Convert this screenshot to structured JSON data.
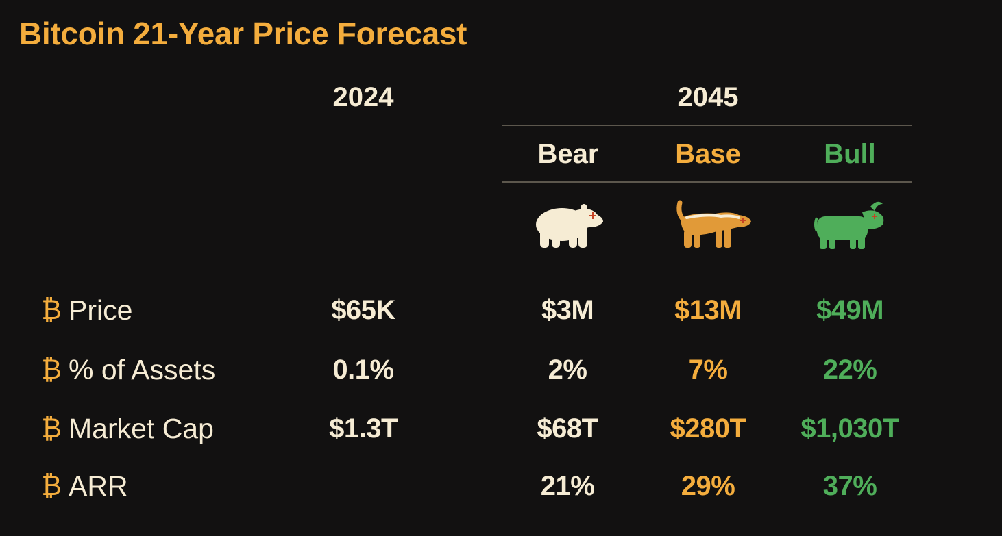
{
  "title": "Bitcoin 21-Year Price Forecast",
  "years": {
    "current": "2024",
    "future": "2045"
  },
  "scenarios": [
    {
      "label": "Bear",
      "color": "#f6ecd4",
      "icon": "bear-icon"
    },
    {
      "label": "Base",
      "color": "#f4ad3d",
      "icon": "honey-badger-icon"
    },
    {
      "label": "Bull",
      "color": "#4fae5a",
      "icon": "bull-icon"
    }
  ],
  "bullet_symbol": "₿",
  "rows": [
    {
      "label": "Price",
      "current": "$65K",
      "bear": "$3M",
      "base": "$13M",
      "bull": "$49M"
    },
    {
      "label": "% of Assets",
      "current": "0.1%",
      "bear": "2%",
      "base": "7%",
      "bull": "22%"
    },
    {
      "label": "Market Cap",
      "current": "$1.3T",
      "bear": "$68T",
      "base": "$280T",
      "bull": "$1,030T"
    },
    {
      "label": "ARR",
      "current": "",
      "bear": "21%",
      "base": "29%",
      "bull": "37%"
    }
  ],
  "colors": {
    "background": "#121111",
    "accent_orange": "#f4ad3d",
    "cream": "#f6ecd4",
    "green": "#4fae5a"
  }
}
